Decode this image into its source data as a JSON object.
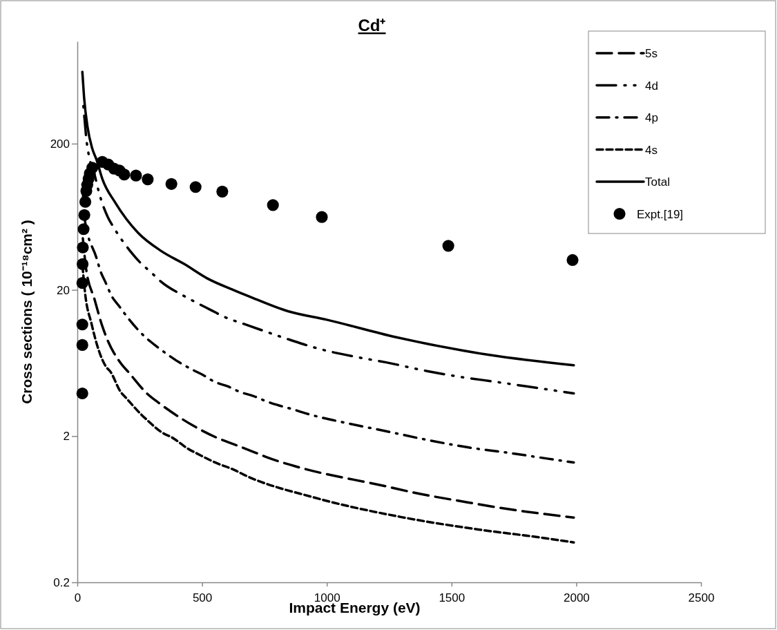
{
  "chart_data": {
    "type": "line",
    "title": "Cd⁺",
    "xlabel": "Impact Energy (eV)",
    "ylabel": "Cross sections ( 10⁻¹⁸cm² )",
    "xlim": [
      0,
      2500
    ],
    "xticks": [
      0,
      500,
      1000,
      1500,
      2000,
      2500
    ],
    "ylim": [
      0.2,
      1000
    ],
    "yticks": [
      0.2,
      2,
      20,
      200
    ],
    "log": "y",
    "grid": false,
    "legend": "top right",
    "marker": "none",
    "series": [
      {
        "name": "5s",
        "color": "#000000",
        "line_style": "longdash",
        "x": [
          22,
          35,
          69,
          100,
          119,
          174,
          208,
          280,
          327,
          415,
          460,
          556,
          631,
          714,
          761,
          869,
          1240,
          1351,
          1564,
          1677,
          1990
        ],
        "values": [
          45,
          28,
          17.2,
          11.3,
          9.25,
          6.3,
          5.4,
          3.9,
          3.37,
          2.65,
          2.38,
          1.96,
          1.75,
          1.54,
          1.43,
          1.25,
          0.905,
          0.82,
          0.705,
          0.653,
          0.555
        ]
      },
      {
        "name": "4d",
        "color": "#000000",
        "line_style": "longdashdotdot",
        "x": [
          22,
          31,
          36,
          45,
          70,
          83,
          99,
          122,
          147,
          211,
          250,
          294,
          335,
          429,
          479,
          534,
          584,
          687,
          853,
          958,
          1128,
          1235,
          1406,
          1517,
          1689,
          1800,
          1990
        ],
        "values": [
          400,
          268,
          216,
          170,
          121,
          98,
          79,
          63,
          53,
          37,
          31,
          26.5,
          22.8,
          18.1,
          16.3,
          14.6,
          13.2,
          11.4,
          9.1,
          8.0,
          6.9,
          6.4,
          5.55,
          5.14,
          4.67,
          4.38,
          3.92
        ]
      },
      {
        "name": "4p",
        "color": "#000000",
        "line_style": "dashdot",
        "x": [
          20,
          30,
          77,
          91,
          114,
          138,
          166,
          202,
          238,
          271,
          318,
          363,
          404,
          457,
          507,
          548,
          604,
          653,
          706,
          761,
          811,
          861,
          916,
          1077,
          1238,
          1398,
          1561,
          1725,
          1888,
          1990
        ],
        "values": [
          110,
          60,
          33,
          27.4,
          22.3,
          18.1,
          15.6,
          12.9,
          10.9,
          9.55,
          8.2,
          7.2,
          6.46,
          5.74,
          5.2,
          4.72,
          4.37,
          4.0,
          3.76,
          3.44,
          3.23,
          3.06,
          2.86,
          2.46,
          2.16,
          1.89,
          1.68,
          1.54,
          1.4,
          1.32
        ]
      },
      {
        "name": "4s",
        "color": "#000000",
        "line_style": "dashed",
        "x": [
          20,
          31,
          57,
          86,
          114,
          133,
          174,
          194,
          257,
          277,
          349,
          374,
          446,
          473,
          557,
          631,
          667,
          950,
          1296,
          1606,
          1857,
          1990
        ],
        "values": [
          30,
          19,
          11.7,
          7.7,
          6.0,
          5.5,
          4.0,
          3.67,
          2.8,
          2.6,
          2.07,
          1.98,
          1.63,
          1.54,
          1.31,
          1.17,
          1.09,
          0.76,
          0.56,
          0.46,
          0.405,
          0.375
        ]
      },
      {
        "name": "Total",
        "color": "#000000",
        "line_style": "solid",
        "x": [
          20,
          27,
          41,
          59,
          77,
          100,
          152,
          244,
          335,
          429,
          520,
          631,
          687,
          844,
          1000,
          1276,
          1647,
          1990
        ],
        "values": [
          620,
          414,
          259,
          187,
          155,
          115,
          79,
          49,
          37,
          30,
          24,
          19.8,
          18.1,
          14.3,
          12.5,
          9.5,
          7.2,
          6.1
        ]
      },
      {
        "name": "Expt.[19]",
        "type": "scatter",
        "marker": "circle",
        "color": "#000000",
        "x": [
          20,
          20,
          20,
          20,
          21,
          22,
          25,
          28,
          32,
          36,
          40,
          45,
          50,
          60,
          100,
          124,
          147,
          169,
          188,
          235,
          282,
          377,
          474,
          581,
          784,
          980,
          1487,
          1985
        ],
        "values": [
          3.92,
          8.4,
          11.6,
          22.3,
          30,
          39,
          52,
          65,
          80,
          95,
          105,
          115,
          125,
          137,
          150,
          144,
          135,
          131,
          123,
          121,
          114,
          106,
          101,
          94,
          76,
          63,
          40,
          32
        ]
      }
    ]
  }
}
